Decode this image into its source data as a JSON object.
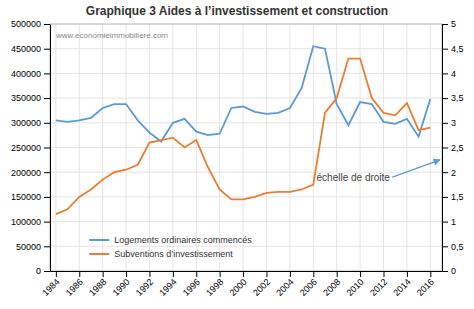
{
  "chart_data": {
    "type": "line",
    "title": "Graphique 3 Aides à l’investissement et construction",
    "annotations": [
      "www.economieimmobiliere.com",
      "échelle de droite"
    ],
    "x": [
      1984,
      1985,
      1986,
      1987,
      1988,
      1989,
      1990,
      1991,
      1992,
      1993,
      1994,
      1995,
      1996,
      1997,
      1998,
      1999,
      2000,
      2001,
      2002,
      2003,
      2004,
      2005,
      2006,
      2007,
      2008,
      2009,
      2010,
      2011,
      2012,
      2013,
      2014,
      2015,
      2016
    ],
    "series": [
      {
        "name": "Logements ordinaires commencés",
        "color": "#5B9BD5",
        "values": [
          305000,
          302000,
          305000,
          310000,
          330000,
          338000,
          338000,
          305000,
          280000,
          262000,
          300000,
          308000,
          282000,
          275000,
          278000,
          330000,
          333000,
          322000,
          318000,
          320000,
          330000,
          370000,
          455000,
          450000,
          338000,
          295000,
          342000,
          338000,
          302000,
          298000,
          308000,
          272000,
          348000
        ]
      },
      {
        "name": "Subventions d’investissement",
        "color": "#ED7D31",
        "axis": "y2",
        "values": [
          1.15,
          1.25,
          1.5,
          1.65,
          1.85,
          2.0,
          2.05,
          2.15,
          2.6,
          2.65,
          2.7,
          2.5,
          2.65,
          2.1,
          1.65,
          1.45,
          1.45,
          1.5,
          1.58,
          1.6,
          1.6,
          1.65,
          1.75,
          3.2,
          3.5,
          4.3,
          4.3,
          3.5,
          3.2,
          3.15,
          3.4,
          2.85,
          2.9
        ]
      }
    ],
    "xlim": [
      1983.5,
      2017.0
    ],
    "xticks": [
      1984,
      1986,
      1988,
      1990,
      1992,
      1994,
      1996,
      1998,
      2000,
      2002,
      2004,
      2006,
      2008,
      2010,
      2012,
      2014,
      2016
    ],
    "ylim": [
      0,
      500000
    ],
    "yticks": [
      0,
      50000,
      100000,
      150000,
      200000,
      250000,
      300000,
      350000,
      400000,
      450000,
      500000
    ],
    "y2lim": [
      0,
      5
    ],
    "y2ticks": [
      0,
      {
        "value": 0.5,
        "label": "0,5"
      },
      1,
      {
        "value": 1.5,
        "label": "1,5"
      },
      2,
      {
        "value": 2.5,
        "label": "2,5"
      },
      3,
      {
        "value": 3.5,
        "label": "3,5"
      },
      4,
      {
        "value": 4.5,
        "label": "4,5"
      },
      5
    ],
    "grid": true,
    "legend": "lower left"
  }
}
